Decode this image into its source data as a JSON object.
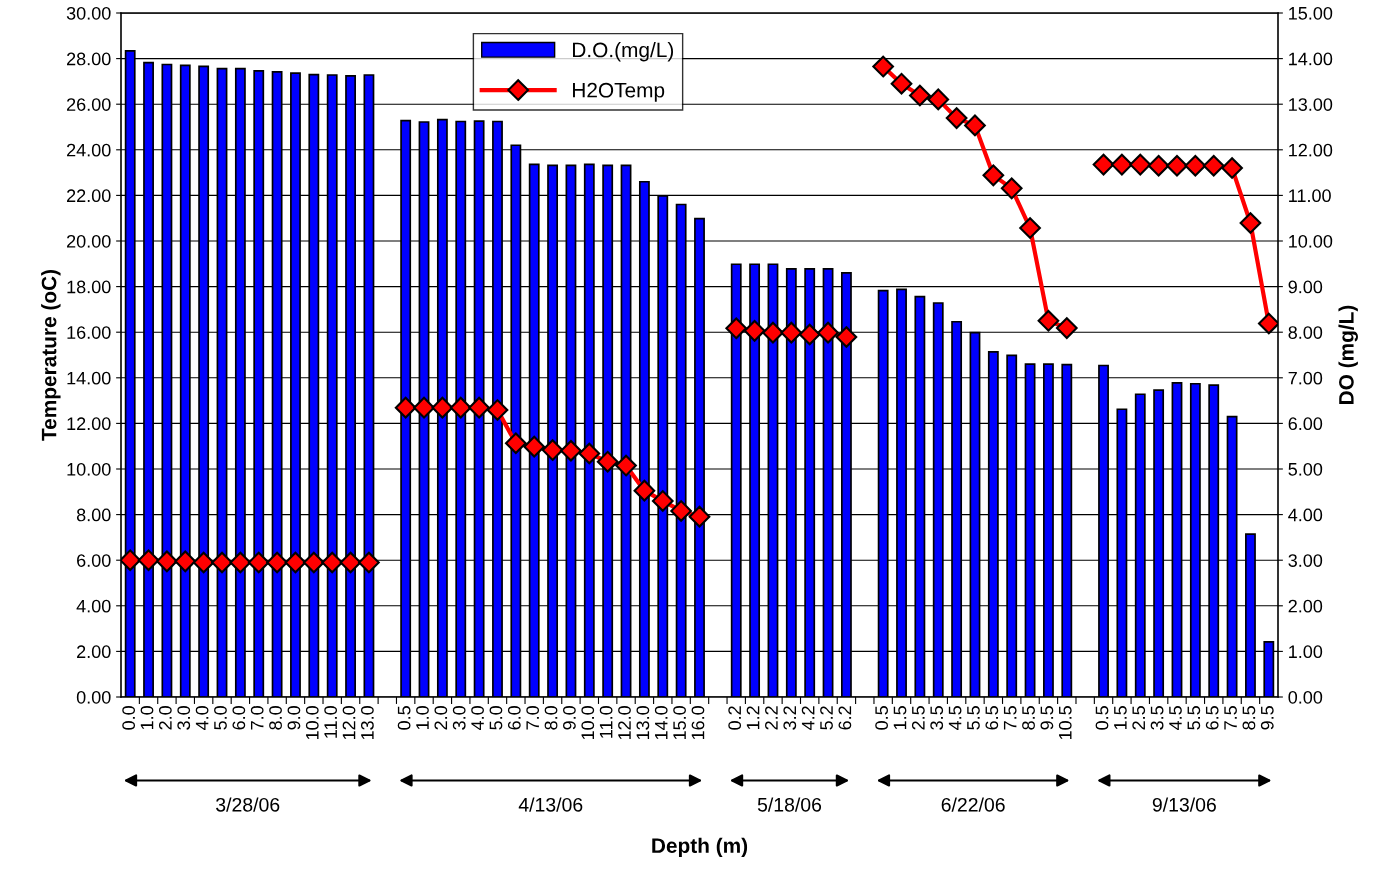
{
  "chart_data": {
    "type": "bar",
    "xlabel": "Depth (m)",
    "ylabel": "Temperature (oC)",
    "y2label": "DO (mg/L)",
    "categories": [
      "0.0",
      "1.0",
      "2.0",
      "3.0",
      "4.0",
      "5.0",
      "6.0",
      "7.0",
      "8.0",
      "9.0",
      "10.0",
      "11.0",
      "12.0",
      "13.0",
      null,
      "0.5",
      "1.0",
      "2.0",
      "3.0",
      "4.0",
      "5.0",
      "6.0",
      "7.0",
      "8.0",
      "9.0",
      "10.0",
      "11.0",
      "12.0",
      "13.0",
      "14.0",
      "15.0",
      "16.0",
      null,
      "0.2",
      "1.2",
      "2.2",
      "3.2",
      "4.2",
      "5.2",
      "6.2",
      null,
      "0.5",
      "1.5",
      "2.5",
      "3.5",
      "4.5",
      "5.5",
      "6.5",
      "7.5",
      "8.5",
      "9.5",
      "10.5",
      null,
      "0.5",
      "1.5",
      "2.5",
      "3.5",
      "4.5",
      "5.5",
      "6.5",
      "7.5",
      "8.5",
      "9.5"
    ],
    "series": [
      {
        "name": "D.O.(mg/L)",
        "axis": "y2",
        "color": "#0000ff",
        "values": [
          14.17,
          13.91,
          13.87,
          13.85,
          13.83,
          13.78,
          13.78,
          13.73,
          13.71,
          13.68,
          13.65,
          13.64,
          13.62,
          13.64,
          null,
          12.64,
          12.61,
          12.66,
          12.62,
          12.63,
          12.62,
          12.1,
          11.68,
          11.66,
          11.66,
          11.68,
          11.66,
          11.66,
          11.3,
          10.99,
          10.8,
          10.49,
          null,
          9.49,
          9.49,
          9.49,
          9.39,
          9.39,
          9.39,
          9.3,
          null,
          8.91,
          8.94,
          8.78,
          8.64,
          8.23,
          7.99,
          7.57,
          7.49,
          7.3,
          7.3,
          7.29,
          null,
          7.27,
          6.31,
          6.64,
          6.73,
          6.89,
          6.87,
          6.84,
          6.15,
          3.57,
          1.21
        ]
      },
      {
        "name": "H2OTemp",
        "type": "line",
        "axis": "y",
        "color": "#ff0000",
        "marker": "diamond",
        "line_style": "solid",
        "values": [
          6.0,
          6.0,
          5.95,
          5.95,
          5.9,
          5.9,
          5.9,
          5.9,
          5.9,
          5.9,
          5.9,
          5.9,
          5.9,
          5.9,
          null,
          12.69,
          12.69,
          12.69,
          12.69,
          12.69,
          12.59,
          11.13,
          10.98,
          10.83,
          10.8,
          10.68,
          10.32,
          10.15,
          9.05,
          8.6,
          8.16,
          7.91,
          null,
          16.17,
          16.06,
          15.98,
          15.98,
          15.9,
          15.98,
          15.79,
          null,
          27.65,
          26.9,
          26.38,
          26.21,
          25.39,
          25.07,
          22.88,
          22.31,
          20.57,
          16.5,
          16.18,
          null,
          23.35,
          23.35,
          23.35,
          23.3,
          23.3,
          23.3,
          23.3,
          23.2,
          20.79,
          16.38
        ]
      }
    ],
    "ylim": [
      0,
      30
    ],
    "yticks": [
      {
        "value": 0,
        "label": "0.00"
      },
      {
        "value": 2,
        "label": "2.00"
      },
      {
        "value": 4,
        "label": "4.00"
      },
      {
        "value": 6,
        "label": "6.00"
      },
      {
        "value": 8,
        "label": "8.00"
      },
      {
        "value": 10,
        "label": "10.00"
      },
      {
        "value": 12,
        "label": "12.00"
      },
      {
        "value": 14,
        "label": "14.00"
      },
      {
        "value": 16,
        "label": "16.00"
      },
      {
        "value": 18,
        "label": "18.00"
      },
      {
        "value": 20,
        "label": "20.00"
      },
      {
        "value": 22,
        "label": "22.00"
      },
      {
        "value": 24,
        "label": "24.00"
      },
      {
        "value": 26,
        "label": "26.00"
      },
      {
        "value": 28,
        "label": "28.00"
      },
      {
        "value": 30,
        "label": "30.00"
      }
    ],
    "y2lim": [
      0,
      15
    ],
    "y2ticks": [
      {
        "value": 0,
        "label": "0.00"
      },
      {
        "value": 1,
        "label": "1.00"
      },
      {
        "value": 2,
        "label": "2.00"
      },
      {
        "value": 3,
        "label": "3.00"
      },
      {
        "value": 4,
        "label": "4.00"
      },
      {
        "value": 5,
        "label": "5.00"
      },
      {
        "value": 6,
        "label": "6.00"
      },
      {
        "value": 7,
        "label": "7.00"
      },
      {
        "value": 8,
        "label": "8.00"
      },
      {
        "value": 9,
        "label": "9.00"
      },
      {
        "value": 10,
        "label": "10.00"
      },
      {
        "value": 11,
        "label": "11.00"
      },
      {
        "value": 12,
        "label": "12.00"
      },
      {
        "value": 13,
        "label": "13.00"
      },
      {
        "value": 14,
        "label": "14.00"
      },
      {
        "value": 15,
        "label": "15.00"
      }
    ],
    "grid": "y",
    "legend": "top",
    "annotations": [
      "3/28/06",
      "4/13/06",
      "5/18/06",
      "6/22/06",
      "9/13/06"
    ]
  }
}
